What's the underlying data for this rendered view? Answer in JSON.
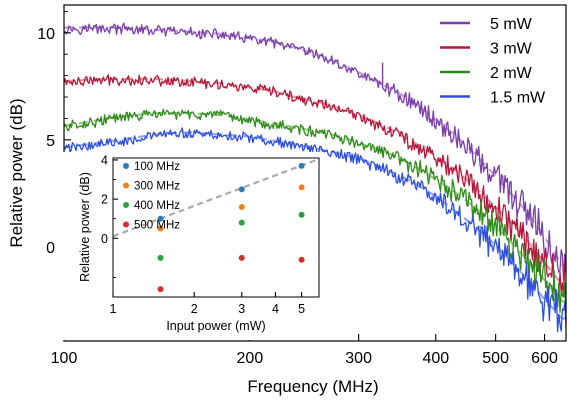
{
  "chart_data": [
    {
      "type": "line",
      "xlabel": "Frequency (MHz)",
      "ylabel": "Relative power (dB)",
      "xscale": "log",
      "xlim": [
        100,
        650
      ],
      "ylim": [
        -4.4,
        11.3
      ],
      "xticks": [
        100,
        200,
        300,
        400,
        500,
        600
      ],
      "xtick_labels": [
        "100",
        "200",
        "300",
        "400",
        "500",
        "600"
      ],
      "yticks": [
        0,
        5,
        10
      ],
      "ytick_labels": [
        "0",
        "5",
        "10"
      ],
      "legend_position": "top-right",
      "series": [
        {
          "name": "5 mW",
          "color": "#7B3FA8",
          "fit_color": "#C79BDB",
          "x": [
            100,
            120,
            140,
            160,
            180,
            200,
            220,
            240,
            260,
            280,
            300,
            330,
            360,
            400,
            440,
            480,
            520,
            560,
            600,
            640
          ],
          "y": [
            10.2,
            10.2,
            10.1,
            10.0,
            9.9,
            9.7,
            9.5,
            9.2,
            8.9,
            8.5,
            8.1,
            7.5,
            6.9,
            5.9,
            4.9,
            3.8,
            2.7,
            1.6,
            0.4,
            -0.9
          ]
        },
        {
          "name": "3 mW",
          "color": "#B5173A",
          "fit_color": "#E4919C",
          "x": [
            100,
            120,
            140,
            160,
            180,
            200,
            220,
            240,
            260,
            280,
            300,
            330,
            360,
            400,
            440,
            480,
            520,
            560,
            600,
            640
          ],
          "y": [
            7.7,
            7.8,
            7.8,
            7.7,
            7.6,
            7.4,
            7.2,
            6.9,
            6.7,
            6.4,
            6.1,
            5.6,
            5.0,
            4.2,
            3.3,
            2.3,
            1.3,
            0.3,
            -0.8,
            -1.8
          ]
        },
        {
          "name": "2 mW",
          "color": "#2E8B1A",
          "fit_color": "#93C97E",
          "x": [
            100,
            120,
            140,
            160,
            180,
            200,
            220,
            240,
            260,
            280,
            300,
            330,
            360,
            400,
            440,
            480,
            520,
            560,
            600,
            640
          ],
          "y": [
            5.6,
            6.0,
            6.2,
            6.2,
            6.1,
            5.9,
            5.7,
            5.5,
            5.3,
            5.1,
            4.8,
            4.4,
            3.9,
            3.1,
            2.3,
            1.4,
            0.4,
            -0.6,
            -1.6,
            -2.6
          ]
        },
        {
          "name": "1.5 mW",
          "color": "#2D4FE0",
          "fit_color": "#95A6F2",
          "x": [
            100,
            120,
            140,
            160,
            180,
            200,
            220,
            240,
            260,
            280,
            300,
            330,
            360,
            400,
            440,
            480,
            520,
            560,
            600,
            640
          ],
          "y": [
            4.6,
            4.9,
            5.2,
            5.3,
            5.2,
            5.1,
            4.9,
            4.7,
            4.5,
            4.3,
            4.1,
            3.6,
            3.1,
            2.3,
            1.4,
            0.5,
            -0.5,
            -1.5,
            -2.5,
            -3.4
          ]
        }
      ]
    },
    {
      "type": "scatter",
      "xlabel": "Input power (mW)",
      "ylabel": "Relative power (dB)",
      "xscale": "log",
      "xlim": [
        1,
        5.8
      ],
      "ylim": [
        -3.0,
        4.1
      ],
      "xticks": [
        1,
        2,
        3,
        4,
        5
      ],
      "xtick_labels": [
        "1",
        "2",
        "3",
        "4",
        "5"
      ],
      "yticks": [
        0,
        2,
        4
      ],
      "ytick_labels": [
        "0",
        "2",
        "4"
      ],
      "legend_position": "top-left",
      "series": [
        {
          "name": "100 MHz",
          "color": "#2B7BBA",
          "x": [
            1.5,
            3,
            5
          ],
          "y": [
            1.0,
            2.5,
            3.7
          ]
        },
        {
          "name": "300 MHz",
          "color": "#F07F1C",
          "x": [
            1.5,
            3,
            5
          ],
          "y": [
            0.5,
            1.6,
            2.6
          ]
        },
        {
          "name": "400 MHz",
          "color": "#2F9E44",
          "x": [
            1.5,
            3,
            5
          ],
          "y": [
            -1.0,
            0.8,
            1.2
          ]
        },
        {
          "name": "500 MHz",
          "color": "#D0312D",
          "x": [
            1.5,
            3,
            5
          ],
          "y": [
            -2.6,
            -1.0,
            -1.1
          ]
        }
      ],
      "trend": {
        "color": "#AAAAAA",
        "x": [
          1,
          5.8
        ],
        "y": [
          0.1,
          4.05
        ]
      }
    }
  ]
}
